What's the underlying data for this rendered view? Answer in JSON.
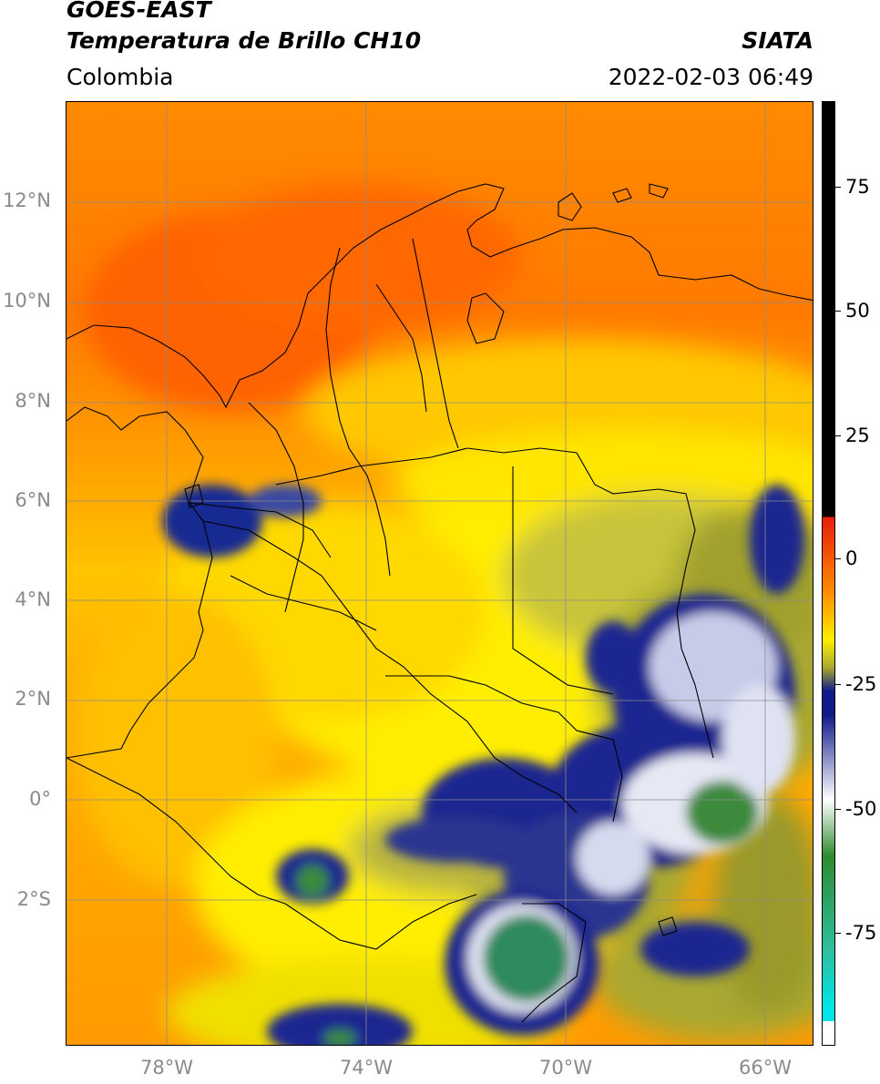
{
  "header": {
    "satellite": "GOES-EAST",
    "product": "Temperatura de Brillo CH10",
    "region": "Colombia",
    "source": "SIATA",
    "datetime": "2022-02-03 06:49"
  },
  "map": {
    "lat_labels": [
      "12°N",
      "10°N",
      "8°N",
      "6°N",
      "4°N",
      "2°N",
      "0°",
      "2°S"
    ],
    "lon_labels": [
      "78°W",
      "74°W",
      "70°W",
      "66°W"
    ],
    "gridline_color": "#8c8c8c"
  },
  "colorbar": {
    "tick_labels": [
      "75",
      "50",
      "25",
      "0",
      "-25",
      "-50",
      "-75"
    ],
    "colors": {
      "warm_black": "#000000",
      "red": "#e81c0c",
      "orange": "#ff8c00",
      "yellow": "#ffef00",
      "olive": "#a8a830",
      "navy": "#101a8a",
      "white": "#ffffff",
      "green": "#2e8a2e",
      "teal": "#2ebf9f",
      "cyan": "#00e5e5"
    }
  }
}
